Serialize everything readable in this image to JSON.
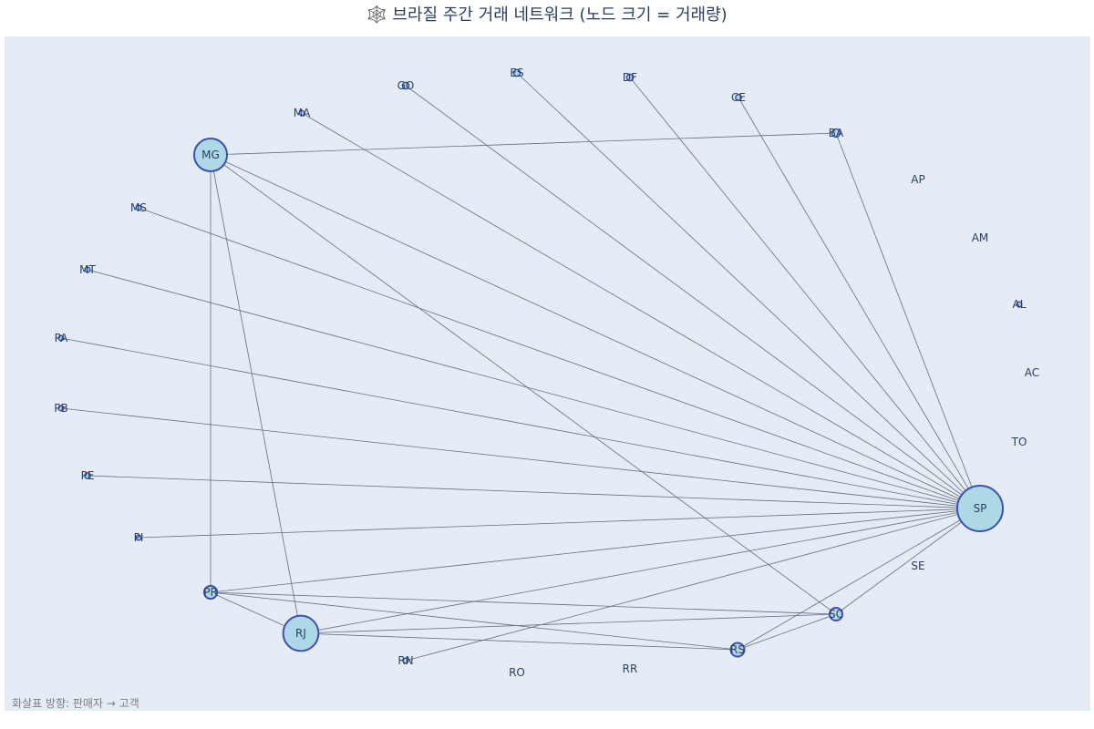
{
  "title": "🕸️ 브라질 주간 거래 네트워크 (노드 크기 = 거래량)",
  "annotation": "화살표 방향: 판매자 → 고객",
  "colors": {
    "plot_bg": "#e5ecf6",
    "edge": "#666e80",
    "node_fill": "#add8e6",
    "node_stroke": "#3f4fb0",
    "label": "#2a3f5f"
  },
  "chart_data": {
    "type": "network",
    "title": "🕸️ 브라질 주간 거래 네트워크 (노드 크기 = 거래량)",
    "nodes": [
      {
        "id": "SP",
        "volume": 100
      },
      {
        "id": "MG",
        "volume": 52
      },
      {
        "id": "RJ",
        "volume": 60
      },
      {
        "id": "PR",
        "volume": 8
      },
      {
        "id": "SC",
        "volume": 5
      },
      {
        "id": "RS",
        "volume": 9
      },
      {
        "id": "BA",
        "volume": 3
      },
      {
        "id": "GO",
        "volume": 2
      },
      {
        "id": "ES",
        "volume": 2
      },
      {
        "id": "DF",
        "volume": 2
      },
      {
        "id": "CE",
        "volume": 1.5
      },
      {
        "id": "MA",
        "volume": 1
      },
      {
        "id": "MS",
        "volume": 1
      },
      {
        "id": "MT",
        "volume": 1
      },
      {
        "id": "PA",
        "volume": 1
      },
      {
        "id": "PB",
        "volume": 1
      },
      {
        "id": "PE",
        "volume": 1.5
      },
      {
        "id": "PI",
        "volume": 1
      },
      {
        "id": "RN",
        "volume": 1
      },
      {
        "id": "RO",
        "volume": 0
      },
      {
        "id": "RR",
        "volume": 0
      },
      {
        "id": "SE",
        "volume": 0
      },
      {
        "id": "TO",
        "volume": 0
      },
      {
        "id": "AC",
        "volume": 0
      },
      {
        "id": "AL",
        "volume": 1
      },
      {
        "id": "AM",
        "volume": 0
      },
      {
        "id": "AP",
        "volume": 0
      }
    ],
    "edges": [
      [
        "SP",
        "BA"
      ],
      [
        "SP",
        "CE"
      ],
      [
        "SP",
        "DF"
      ],
      [
        "SP",
        "ES"
      ],
      [
        "SP",
        "GO"
      ],
      [
        "SP",
        "MA"
      ],
      [
        "SP",
        "MG"
      ],
      [
        "SP",
        "MS"
      ],
      [
        "SP",
        "MT"
      ],
      [
        "SP",
        "PA"
      ],
      [
        "SP",
        "PB"
      ],
      [
        "SP",
        "PE"
      ],
      [
        "SP",
        "PI"
      ],
      [
        "SP",
        "PR"
      ],
      [
        "SP",
        "RJ"
      ],
      [
        "SP",
        "RN"
      ],
      [
        "SP",
        "RS"
      ],
      [
        "SP",
        "SC"
      ],
      [
        "MG",
        "BA"
      ],
      [
        "MG",
        "PR"
      ],
      [
        "MG",
        "RJ"
      ],
      [
        "MG",
        "SC"
      ],
      [
        "PR",
        "RJ"
      ],
      [
        "PR",
        "SC"
      ],
      [
        "PR",
        "RS"
      ],
      [
        "RJ",
        "SC"
      ],
      [
        "RJ",
        "RS"
      ],
      [
        "RS",
        "SC"
      ]
    ]
  }
}
